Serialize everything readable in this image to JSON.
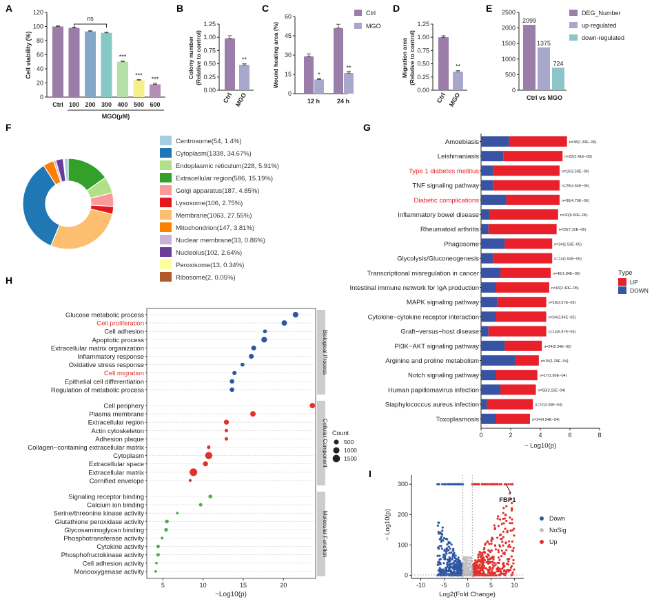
{
  "panel_labels": [
    "A",
    "B",
    "C",
    "D",
    "E",
    "F",
    "G",
    "H",
    "I"
  ],
  "colors": {
    "purple": "#9A7DA8",
    "lavender": "#A8A8CC",
    "teal": "#8EC5C8",
    "red": "#E8202A",
    "blue": "#3953A4",
    "gray": "#BFBFBF",
    "dot_blue": "#2E57A1",
    "dot_red": "#E0312C",
    "dot_green": "#4DAF4A",
    "strip": "#CCCCCC"
  },
  "chart_data": [
    {
      "id": "A",
      "type": "bar",
      "title": "",
      "ylabel": "Cell viability (%)",
      "xlabel": "MGO(μM)",
      "categories": [
        "Ctrl",
        "100",
        "200",
        "300",
        "400",
        "500",
        "600"
      ],
      "values": [
        100,
        98,
        93,
        91,
        50,
        24,
        18
      ],
      "errors": [
        1,
        1,
        1,
        1,
        1,
        1,
        1.5
      ],
      "bar_colors": [
        "#9A7DA8",
        "#9A7DA8",
        "#84A8C8",
        "#84C9C3",
        "#B5E0A5",
        "#F5EF8C",
        "#B58DB6"
      ],
      "significance": [
        "",
        "",
        "",
        "",
        "***",
        "***",
        "***"
      ],
      "ns_bracket": {
        "from": "100",
        "to": "300",
        "label": "ns"
      },
      "yticks": [
        0,
        20,
        40,
        60,
        80,
        100,
        120
      ],
      "ylim": [
        0,
        120
      ]
    },
    {
      "id": "B",
      "type": "bar",
      "ylabel_lines": [
        "Colony number",
        "(Relative to control)"
      ],
      "categories": [
        "Ctrl",
        "MGO"
      ],
      "values": [
        0.98,
        0.48
      ],
      "errors": [
        0.05,
        0.02
      ],
      "significance": [
        "",
        "**"
      ],
      "yticks": [
        "0.00",
        "0.25",
        "0.50",
        "0.75",
        "1.00",
        "1.25"
      ],
      "ylim": [
        0,
        1.25
      ]
    },
    {
      "id": "C",
      "type": "bar",
      "ylabel": "Wound healing area (%)",
      "groups": [
        "12 h",
        "24 h"
      ],
      "series": [
        {
          "name": "Ctrl",
          "values": [
            29,
            51
          ],
          "errors": [
            2,
            3
          ]
        },
        {
          "name": "MGO",
          "values": [
            11,
            16
          ],
          "errors": [
            1,
            1.5
          ]
        }
      ],
      "significance": [
        "*",
        "**"
      ],
      "yticks": [
        0,
        15,
        30,
        45,
        60
      ],
      "ylim": [
        0,
        60
      ],
      "legend": [
        "Ctrl",
        "MGO"
      ]
    },
    {
      "id": "D",
      "type": "bar",
      "ylabel_lines": [
        "Migration area",
        "(Relative to control)"
      ],
      "categories": [
        "Ctrl",
        "MGO"
      ],
      "values": [
        1.0,
        0.35
      ],
      "errors": [
        0.03,
        0.02
      ],
      "significance": [
        "",
        "**"
      ],
      "yticks": [
        "0.00",
        "0.25",
        "0.50",
        "0.75",
        "1.00",
        "1.25"
      ],
      "ylim": [
        0,
        1.25
      ]
    },
    {
      "id": "E",
      "type": "bar",
      "xlabel": "Ctrl vs MGO",
      "categories": [
        "DEG_Number",
        "up-regulated",
        "down-regulated"
      ],
      "values": [
        2099,
        1375,
        724
      ],
      "value_labels": [
        "2099",
        "1375",
        "724"
      ],
      "yticks": [
        0,
        500,
        1000,
        1500,
        2000,
        2500
      ],
      "ylim": [
        0,
        2500
      ]
    },
    {
      "id": "F",
      "type": "pie",
      "donut": true,
      "categories": [
        "Centrosome(54, 1.4%)",
        "Cytoplasm(1338, 34.67%)",
        "Endoplasmic reticulum(228, 5.91%)",
        "Extracellular region(586, 15.19%)",
        "Golgi apparatus(187, 4.85%)",
        "Lysosome(106, 2.75%)",
        "Membrane(1063, 27.55%)",
        "Mitochondrion(147, 3.81%)",
        "Nuclear membrane(33, 0.86%)",
        "Nucleolus(102, 2.64%)",
        "Peroxisome(13, 0.34%)",
        "Ribosome(2, 0.05%)"
      ],
      "values": [
        54,
        1338,
        228,
        586,
        187,
        106,
        1063,
        147,
        33,
        102,
        13,
        2
      ],
      "slice_colors": [
        "#A6CEE3",
        "#1F78B4",
        "#B2DF8A",
        "#33A02C",
        "#FB9A99",
        "#E31A1C",
        "#FDBF6F",
        "#FF7F00",
        "#CAB2D6",
        "#6A3D9A",
        "#FFFF99",
        "#B15928"
      ],
      "draw_order": [
        3,
        2,
        4,
        5,
        6,
        1,
        7,
        8,
        9,
        10,
        11,
        0
      ]
    },
    {
      "id": "G",
      "type": "bar",
      "orientation": "horizontal stacked",
      "xlabel": "− Log10(p)",
      "categories": [
        "Amoebiasis",
        "Leishmaniasis",
        "Type 1 diabetes mellitus",
        "TNF signaling pathway",
        "Diabetic complications",
        "Inflammatory bowel disease",
        "Rheumatoid arthritis",
        "Phagosome",
        "Glycolysis/Gluconeogenesis",
        "Transcriptional misregulation in cancer",
        "Intestinal immune network for IgA production",
        "MAPK signaling pathway",
        "Cytokine−cytokine receptor interaction",
        "Graft−versus−host disease",
        "PI3K−AKT signaling pathway",
        "Arginine and proline metabolism",
        "Notch signaling pathway",
        "Human papillomavirus infection",
        "Staphylococcus aureus infection",
        "Toxoplasmosis"
      ],
      "highlighted": [
        "Type 1 diabetes mellitus",
        "Diabetic complications"
      ],
      "series": [
        {
          "name": "DOWN",
          "values": [
            1.9,
            1.5,
            0.8,
            0.8,
            1.7,
            0.6,
            0.5,
            1.6,
            0.8,
            1.3,
            1.0,
            1.1,
            1.0,
            0.5,
            1.6,
            2.3,
            1.0,
            1.3,
            0.4,
            1.0
          ]
        },
        {
          "name": "UP",
          "values": [
            3.9,
            4.0,
            4.5,
            4.5,
            3.6,
            4.6,
            4.6,
            3.2,
            4.0,
            3.4,
            3.6,
            3.3,
            3.4,
            3.9,
            2.5,
            1.6,
            2.8,
            2.4,
            3.1,
            2.3
          ]
        }
      ],
      "annotations": [
        "n=38(1.33E−06)",
        "n=22(2.41E−06)",
        "n=16(3.50E−06)",
        "n=29(4.64E−06)",
        "n=36(4.75E−06)",
        "n=20(6.60E−06)",
        "n=25(7.32E−06)",
        "n=34(1.53E−05)",
        "n=14(1.64E−05)",
        "n=40(1.84E−05)",
        "n=16(2.40E−05)",
        "n=18(3.57E−05)",
        "n=54(3.94E−05)",
        "n=14(5.97E−05)",
        "n=24(8.34E−05)",
        "n=15(1.29E−04)",
        "n=17(1.80E−04)",
        "n=56(2.15E−04)",
        "n=22(3.30E−04)",
        "n=24(4.54E−04)"
      ],
      "xticks": [
        0,
        2,
        4,
        6,
        8
      ],
      "xlim": [
        0,
        8
      ],
      "legend": {
        "title": "Type",
        "items": [
          "UP",
          "DOWN"
        ]
      }
    },
    {
      "id": "H",
      "type": "scatter",
      "xlabel": "−Log10(p)",
      "xticks": [
        5,
        10,
        15,
        20
      ],
      "xlim": [
        3,
        24
      ],
      "groups": [
        {
          "name": "Biological Process",
          "color": "#2E57A1",
          "terms": [
            "Glucose metabolic process",
            "Cell proliferation",
            "Cell adhesion",
            "Apoptotic process",
            "Extracellular matrix organization",
            "Inflammatory response",
            "Oxidative stress response",
            "Cell migration",
            "Epithelial cell differentiation",
            "Regulation of metabolic process"
          ],
          "x": [
            21.5,
            20.1,
            17.7,
            17.6,
            16.3,
            16.0,
            14.9,
            13.9,
            13.6,
            13.6
          ],
          "count": [
            750,
            700,
            260,
            780,
            520,
            520,
            280,
            320,
            420,
            420
          ]
        },
        {
          "name": "Cellular Component",
          "color": "#E0312C",
          "terms": [
            "Cell periphery",
            "Plasma membrane",
            "Extracellular region",
            "Actin cytoskeleton",
            "Adhesion plaque",
            "Collagen−containing extracellular matrix",
            "Cytoplasm",
            "Extracellular space",
            "Extracellular matrix",
            "Cornified envelope"
          ],
          "x": [
            23.6,
            16.2,
            12.9,
            12.9,
            12.9,
            10.7,
            10.7,
            10.3,
            8.8,
            8.4
          ],
          "count": [
            650,
            700,
            550,
            180,
            180,
            200,
            1400,
            550,
            1600,
            100
          ]
        },
        {
          "name": "Molecular Function",
          "color": "#4DAF4A",
          "terms": [
            "Signaling receptor binding",
            "Calcium ion binding",
            "Serine/threonine kinase activity",
            "Glutathione peroxidase activity",
            "Glycosaminoglycan binding",
            "Phosphotransferase activity",
            "Cytokine activity",
            "Phosphofructokinase activity",
            "Cell adhesion activity",
            "Monooxygenase activity"
          ],
          "x": [
            10.9,
            9.7,
            6.8,
            5.5,
            5.4,
            4.9,
            4.4,
            4.4,
            4.2,
            4.1
          ],
          "count": [
            250,
            180,
            60,
            230,
            230,
            90,
            200,
            200,
            60,
            60
          ]
        }
      ],
      "highlighted": [
        "Cell proliferation",
        "Cell migration"
      ],
      "legend": {
        "title": "Count",
        "items": [
          "500",
          "1000",
          "1500"
        ]
      }
    },
    {
      "id": "I",
      "type": "scatter",
      "subtype": "volcano",
      "xlabel": "Log2(Fold Change)",
      "ylabel": "− Log10(p)",
      "xticks": [
        -10,
        -5,
        0,
        5,
        10
      ],
      "yticks": [
        0,
        100,
        200,
        300
      ],
      "xlim": [
        -12,
        12
      ],
      "ylim": [
        -10,
        330
      ],
      "legend": [
        "Down",
        "NoSig",
        "Up"
      ],
      "annotation": "FBP1",
      "annotated_point": {
        "x": 8.2,
        "y": 300
      }
    }
  ]
}
